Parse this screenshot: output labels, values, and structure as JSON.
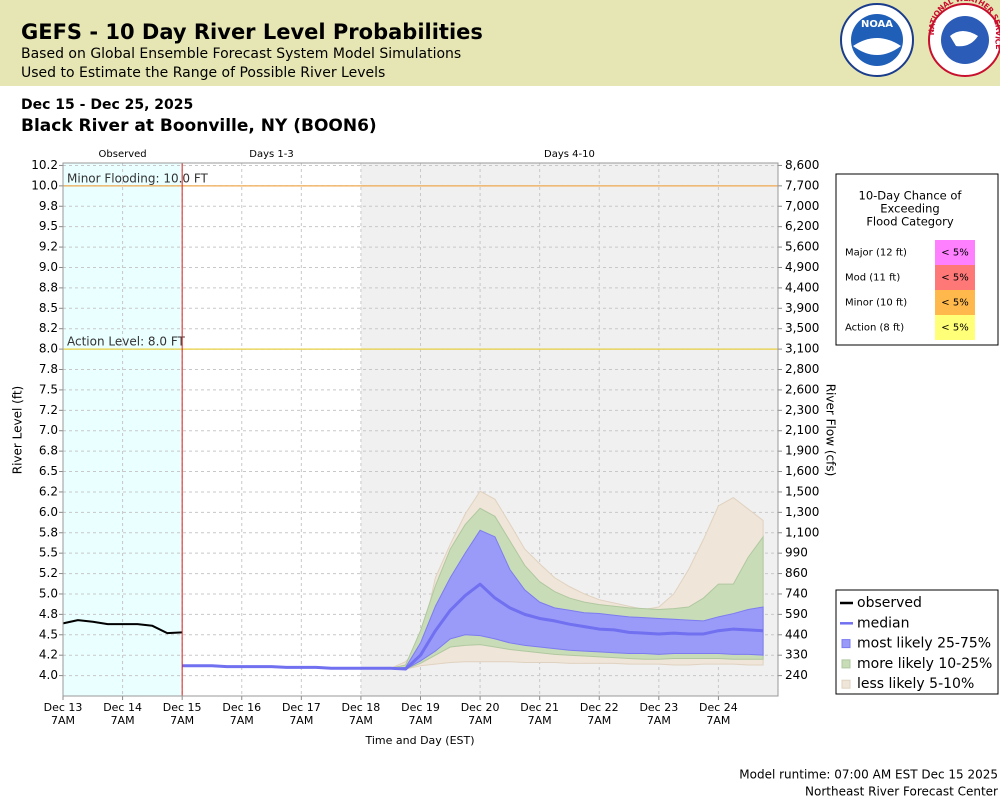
{
  "header": {
    "title": "GEFS - 10 Day River Level Probabilities",
    "subtitles": [
      "Based on Global Ensemble Forecast System Model Simulations",
      "Used to Estimate the Range of Possible River Levels"
    ],
    "date_range": "Dec 15 - Dec 25, 2025",
    "location": "Black River at Boonville, NY (BOON6)",
    "logos": [
      "NOAA",
      "NATIONAL WEATHER SERVICE"
    ]
  },
  "chart_data": {
    "type": "line",
    "xlabel": "Time and Day (EST)",
    "ylabel": "River Level (ft)",
    "y2label": "River Flow (cfs)",
    "xlim": [
      0,
      12
    ],
    "xticks": [
      {
        "value": 0,
        "label": "Dec 13"
      },
      {
        "value": 1,
        "label": "Dec 14"
      },
      {
        "value": 2,
        "label": "Dec 15"
      },
      {
        "value": 3,
        "label": "Dec 16"
      },
      {
        "value": 4,
        "label": "Dec 17"
      },
      {
        "value": 5,
        "label": "Dec 18"
      },
      {
        "value": 6,
        "label": "Dec 19"
      },
      {
        "value": 7,
        "label": "Dec 20"
      },
      {
        "value": 8,
        "label": "Dec 21"
      },
      {
        "value": 9,
        "label": "Dec 22"
      },
      {
        "value": 10,
        "label": "Dec 23"
      },
      {
        "value": 11,
        "label": "Dec 24"
      }
    ],
    "xtick_time": "7AM",
    "ylim": [
      3.75,
      10.28
    ],
    "yticks": [
      {
        "value": 4.0,
        "label": "4.0"
      },
      {
        "value": 4.25,
        "label": "4.2"
      },
      {
        "value": 4.5,
        "label": "4.5"
      },
      {
        "value": 4.75,
        "label": "4.8"
      },
      {
        "value": 5.0,
        "label": "5.0"
      },
      {
        "value": 5.25,
        "label": "5.2"
      },
      {
        "value": 5.5,
        "label": "5.5"
      },
      {
        "value": 5.75,
        "label": "5.8"
      },
      {
        "value": 6.0,
        "label": "6.0"
      },
      {
        "value": 6.25,
        "label": "6.2"
      },
      {
        "value": 6.5,
        "label": "6.5"
      },
      {
        "value": 6.75,
        "label": "6.8"
      },
      {
        "value": 7.0,
        "label": "7.0"
      },
      {
        "value": 7.25,
        "label": "7.2"
      },
      {
        "value": 7.5,
        "label": "7.5"
      },
      {
        "value": 7.75,
        "label": "7.8"
      },
      {
        "value": 8.0,
        "label": "8.0"
      },
      {
        "value": 8.25,
        "label": "8.2"
      },
      {
        "value": 8.5,
        "label": "8.5"
      },
      {
        "value": 8.75,
        "label": "8.8"
      },
      {
        "value": 9.0,
        "label": "9.0"
      },
      {
        "value": 9.25,
        "label": "9.2"
      },
      {
        "value": 9.5,
        "label": "9.5"
      },
      {
        "value": 9.75,
        "label": "9.8"
      },
      {
        "value": 10.0,
        "label": "10.0"
      },
      {
        "value": 10.25,
        "label": "10.2"
      }
    ],
    "y2ticks": [
      240,
      330,
      440,
      590,
      740,
      860,
      990,
      {
        "value": 1100,
        "label": "1,100"
      },
      {
        "value": 1300,
        "label": "1,300"
      },
      {
        "value": 1500,
        "label": "1,500"
      },
      {
        "value": 1600,
        "label": "1,600"
      },
      {
        "value": 1900,
        "label": "1,900"
      },
      {
        "value": 2100,
        "label": "2,100"
      },
      {
        "value": 2300,
        "label": "2,300"
      },
      {
        "value": 2600,
        "label": "2,600"
      },
      {
        "value": 2800,
        "label": "2,800"
      },
      {
        "value": 3100,
        "label": "3,100"
      },
      {
        "value": 3500,
        "label": "3,500"
      },
      {
        "value": 3900,
        "label": "3,900"
      },
      {
        "value": 4400,
        "label": "4,400"
      },
      {
        "value": 4900,
        "label": "4,900"
      },
      {
        "value": 5600,
        "label": "5,600"
      },
      {
        "value": 6200,
        "label": "6,200"
      },
      {
        "value": 7000,
        "label": "7,000"
      },
      {
        "value": 7700,
        "label": "7,700"
      },
      {
        "value": 8600,
        "label": "8,600"
      }
    ],
    "grid": true,
    "periods": [
      {
        "label": "Observed",
        "start": 0,
        "end": 2,
        "color": "#eaffff"
      },
      {
        "label": "Days 1-3",
        "start": 2,
        "end": 5,
        "color": "#ffffff"
      },
      {
        "label": "Days 4-10",
        "start": 5,
        "end": 12,
        "color": "#f0f0f0"
      }
    ],
    "thresholds": [
      {
        "label": "Minor Flooding: 10.0 FT",
        "value": 10.0,
        "color": "#f0a850"
      },
      {
        "label": "Action Level: 8.0 FT",
        "value": 8.0,
        "color": "#e8d040"
      }
    ],
    "series": [
      {
        "name": "observed",
        "style": "line",
        "color": "#000000",
        "x": [
          0,
          0.25,
          0.5,
          0.75,
          1,
          1.25,
          1.5,
          1.75,
          2
        ],
        "values": [
          4.64,
          4.68,
          4.66,
          4.63,
          4.63,
          4.63,
          4.61,
          4.52,
          4.53
        ]
      },
      {
        "name": "median",
        "style": "line",
        "color": "#7070f0",
        "x": [
          2,
          2.25,
          2.5,
          2.75,
          3,
          3.25,
          3.5,
          3.75,
          4,
          4.25,
          4.5,
          4.75,
          5,
          5.25,
          5.5,
          5.75,
          6,
          6.25,
          6.5,
          6.75,
          7,
          7.25,
          7.5,
          7.75,
          8,
          8.25,
          8.5,
          8.75,
          9,
          9.25,
          9.5,
          9.75,
          10,
          10.25,
          10.5,
          10.75,
          11,
          11.25,
          11.5,
          11.75
        ],
        "values": [
          4.12,
          4.12,
          4.12,
          4.11,
          4.11,
          4.11,
          4.11,
          4.1,
          4.1,
          4.1,
          4.09,
          4.09,
          4.09,
          4.09,
          4.09,
          4.08,
          4.25,
          4.55,
          4.8,
          4.98,
          5.12,
          4.95,
          4.83,
          4.75,
          4.7,
          4.67,
          4.63,
          4.6,
          4.57,
          4.56,
          4.53,
          4.52,
          4.51,
          4.52,
          4.51,
          4.51,
          4.55,
          4.57,
          4.56,
          4.55
        ]
      },
      {
        "name": "most likely 25-75%",
        "style": "band",
        "color": "#9a9af8",
        "stroke": "#7c7cf0",
        "x": [
          5.5,
          5.75,
          6,
          6.25,
          6.5,
          6.75,
          7,
          7.25,
          7.5,
          7.75,
          8,
          8.25,
          8.5,
          8.75,
          9,
          9.25,
          9.5,
          9.75,
          10,
          10.25,
          10.5,
          10.75,
          11,
          11.25,
          11.5,
          11.75
        ],
        "low": [
          4.09,
          4.08,
          4.18,
          4.3,
          4.45,
          4.5,
          4.49,
          4.45,
          4.4,
          4.37,
          4.35,
          4.33,
          4.31,
          4.3,
          4.29,
          4.28,
          4.27,
          4.27,
          4.26,
          4.27,
          4.27,
          4.27,
          4.27,
          4.26,
          4.26,
          4.25
        ],
        "high": [
          4.09,
          4.1,
          4.4,
          4.85,
          5.2,
          5.5,
          5.78,
          5.7,
          5.3,
          5.05,
          4.9,
          4.83,
          4.8,
          4.77,
          4.76,
          4.74,
          4.72,
          4.71,
          4.7,
          4.69,
          4.68,
          4.67,
          4.72,
          4.76,
          4.81,
          4.84
        ]
      },
      {
        "name": "more likely 10-25%",
        "style": "band",
        "color": "#c8dcb8",
        "stroke": "#b0c8a0",
        "x": [
          5.5,
          5.75,
          6,
          6.25,
          6.5,
          6.75,
          7,
          7.25,
          7.5,
          7.75,
          8,
          8.25,
          8.5,
          8.75,
          9,
          9.25,
          9.5,
          9.75,
          10,
          10.25,
          10.5,
          10.75,
          11,
          11.25,
          11.5,
          11.75
        ],
        "low": [
          4.09,
          4.08,
          4.15,
          4.25,
          4.35,
          4.37,
          4.38,
          4.35,
          4.32,
          4.3,
          4.28,
          4.26,
          4.25,
          4.24,
          4.23,
          4.22,
          4.21,
          4.2,
          4.2,
          4.21,
          4.21,
          4.21,
          4.21,
          4.2,
          4.2,
          4.2
        ],
        "high": [
          4.09,
          4.13,
          4.55,
          5.1,
          5.55,
          5.85,
          6.05,
          5.95,
          5.65,
          5.35,
          5.15,
          5.03,
          4.95,
          4.9,
          4.87,
          4.85,
          4.83,
          4.82,
          4.81,
          4.82,
          4.84,
          4.95,
          5.12,
          5.12,
          5.45,
          5.7
        ]
      },
      {
        "name": "less likely 5-10%",
        "style": "band",
        "color": "#efe5d8",
        "stroke": "#e0d2c0",
        "x": [
          5.5,
          5.75,
          6,
          6.25,
          6.5,
          6.75,
          7,
          7.25,
          7.5,
          7.75,
          8,
          8.25,
          8.5,
          8.75,
          9,
          9.25,
          9.5,
          9.75,
          10,
          10.25,
          10.5,
          10.75,
          11,
          11.25,
          11.5,
          11.75
        ],
        "low": [
          4.09,
          4.08,
          4.12,
          4.14,
          4.16,
          4.17,
          4.17,
          4.17,
          4.17,
          4.16,
          4.16,
          4.16,
          4.15,
          4.15,
          4.15,
          4.15,
          4.14,
          4.14,
          4.14,
          4.13,
          4.13,
          4.14,
          4.14,
          4.14,
          4.13,
          4.13
        ],
        "high": [
          4.09,
          4.17,
          4.38,
          5.2,
          5.61,
          5.98,
          6.26,
          6.16,
          5.86,
          5.55,
          5.37,
          5.2,
          5.09,
          5.0,
          4.93,
          4.89,
          4.85,
          4.81,
          4.84,
          5.0,
          5.3,
          5.67,
          6.08,
          6.18,
          6.04,
          5.9
        ]
      }
    ]
  },
  "flood_table": {
    "title": [
      "10-Day Chance of",
      "Exceeding",
      "Flood Category"
    ],
    "rows": [
      {
        "label": "Major (12 ft)",
        "chance": "< 5%",
        "color": "#ff80ff"
      },
      {
        "label": "Mod (11 ft)",
        "chance": "< 5%",
        "color": "#ff7878"
      },
      {
        "label": "Minor (10 ft)",
        "chance": "< 5%",
        "color": "#ffb84c"
      },
      {
        "label": "Action (8 ft)",
        "chance": "< 5%",
        "color": "#ffff78"
      }
    ]
  },
  "footer": {
    "runtime": "Model runtime: 07:00 AM EST Dec 15 2025",
    "center": "Northeast River Forecast Center"
  }
}
